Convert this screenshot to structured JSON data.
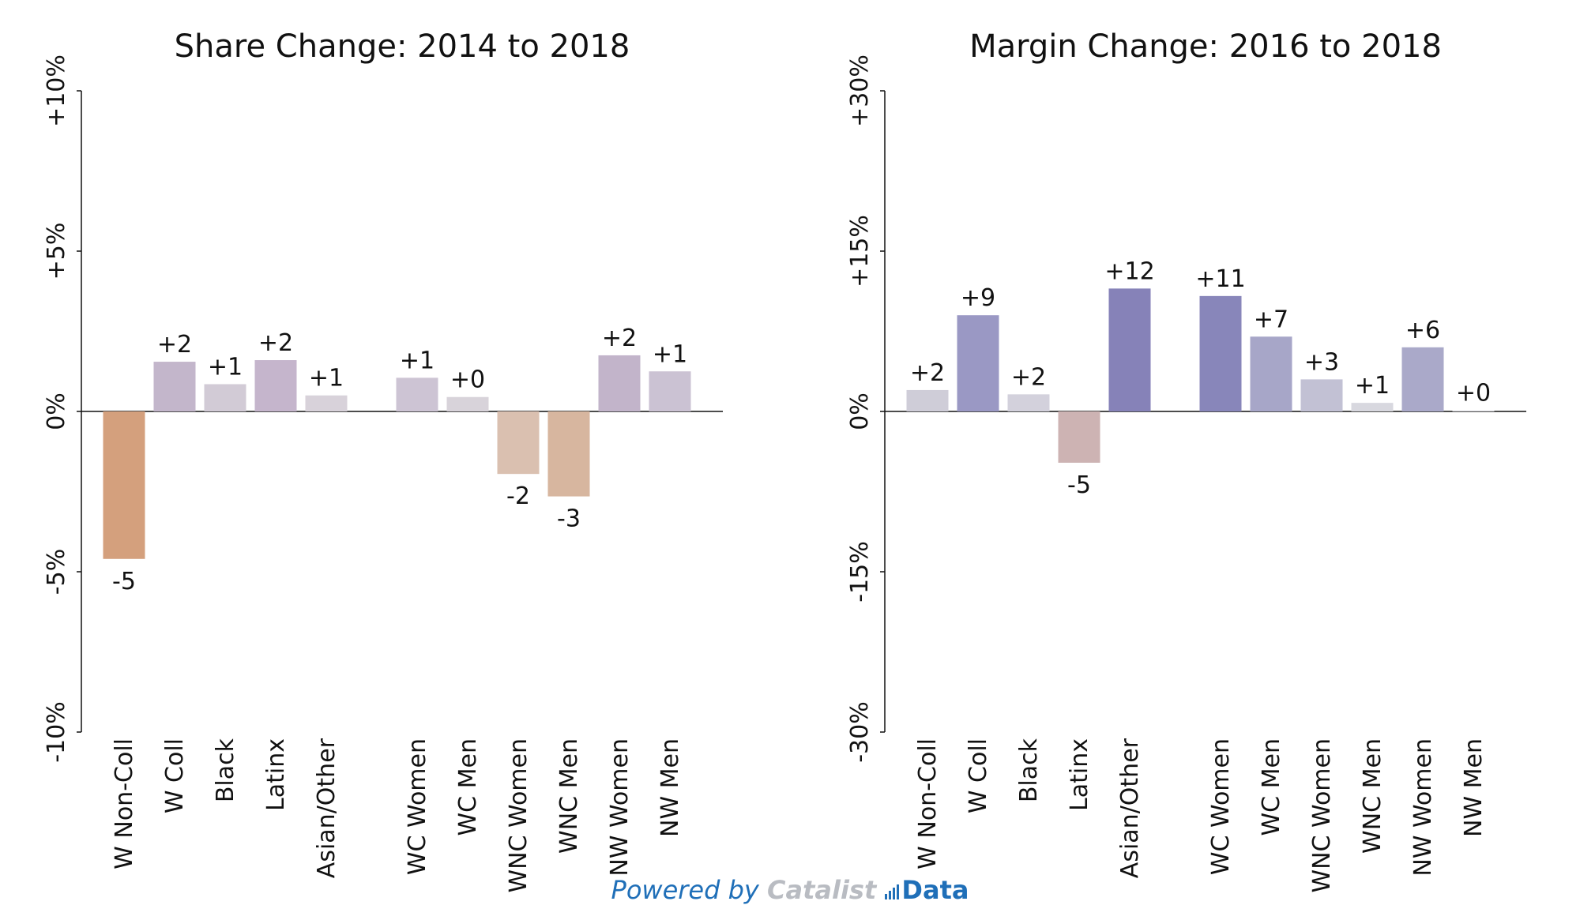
{
  "chart_data": [
    {
      "type": "bar",
      "title": "Share Change: 2014 to 2018",
      "xlabel": "",
      "ylabel": "",
      "ylim": [
        -10,
        10
      ],
      "yticks": [
        {
          "value": -10,
          "label": "-10%"
        },
        {
          "value": -5,
          "label": "-5%"
        },
        {
          "value": 0,
          "label": "0%"
        },
        {
          "value": 5,
          "label": "+5%"
        },
        {
          "value": 10,
          "label": "+10%"
        }
      ],
      "grid": false,
      "categories": [
        "W Non-Coll",
        "W Coll",
        "Black",
        "Latinx",
        "Asian/Other",
        "WC Women",
        "WC Men",
        "WNC Women",
        "WNC Men",
        "NW Women",
        "NW Men"
      ],
      "values": [
        -4.6,
        1.55,
        0.85,
        1.6,
        0.5,
        1.05,
        0.45,
        -1.95,
        -2.65,
        1.75,
        1.25
      ],
      "data_labels": [
        "-5",
        "+2",
        "+1",
        "+2",
        "+1",
        "+1",
        "+0",
        "-2",
        "-3",
        "+2",
        "+1"
      ],
      "colors": [
        "#d4a07d",
        "#c3b6cb",
        "#d2cbd6",
        "#c5b5cc",
        "#d8d2da",
        "#cdc4d4",
        "#d8d3da",
        "#dac0b0",
        "#d7b69f",
        "#c2b4ca",
        "#cbc2d3"
      ]
    },
    {
      "type": "bar",
      "title": "Margin Change: 2016 to 2018",
      "xlabel": "",
      "ylabel": "",
      "ylim": [
        -30,
        30
      ],
      "yticks": [
        {
          "value": -30,
          "label": "-30%"
        },
        {
          "value": -15,
          "label": "-15%"
        },
        {
          "value": 0,
          "label": "0%"
        },
        {
          "value": 15,
          "label": "+15%"
        },
        {
          "value": 30,
          "label": "+30%"
        }
      ],
      "grid": false,
      "categories": [
        "W Non-Coll",
        "W Coll",
        "Black",
        "Latinx",
        "Asian/Other",
        "WC Women",
        "WC Men",
        "WNC Women",
        "WNC Men",
        "NW Women",
        "NW Men"
      ],
      "values": [
        2.0,
        9.0,
        1.6,
        -4.8,
        11.5,
        10.8,
        7.0,
        3.0,
        0.8,
        6.0,
        0.1
      ],
      "data_labels": [
        "+2",
        "+9",
        "+2",
        "-5",
        "+12",
        "+11",
        "+7",
        "+3",
        "+1",
        "+6",
        "+0"
      ],
      "colors": [
        "#cfcdd8",
        "#9a98c4",
        "#d3d1dc",
        "#cdb3b3",
        "#8682b8",
        "#8886ba",
        "#a7a6c8",
        "#c2c1d4",
        "#d8d8df",
        "#aaa9c9",
        "#e3e3e8"
      ]
    }
  ],
  "footer": {
    "powered": "Powered by",
    "brand": "Catalist",
    "data_word": "Data",
    "brand_color": "#1f6fb8"
  }
}
